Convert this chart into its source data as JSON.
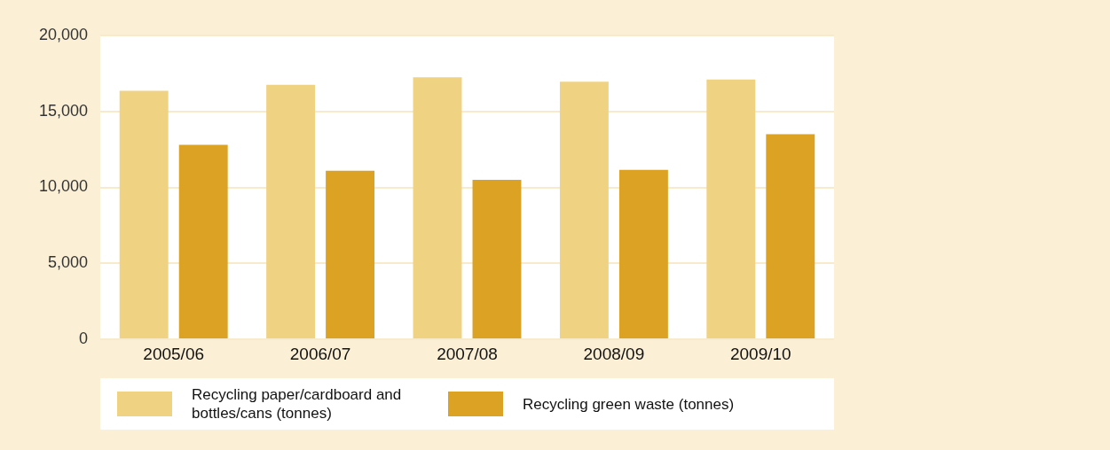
{
  "chart_data": {
    "type": "bar",
    "categories": [
      "2005/06",
      "2006/07",
      "2007/08",
      "2008/09",
      "2009/10"
    ],
    "series": [
      {
        "name": "Recycling paper/cardboard and bottles/cans (tonnes)",
        "color": "#f0d283",
        "values": [
          16350,
          16750,
          17250,
          16950,
          17100
        ]
      },
      {
        "name": "Recycling green waste (tonnes)",
        "color": "#dba223",
        "values": [
          12800,
          11100,
          10500,
          11150,
          13500
        ]
      }
    ],
    "ylim": [
      0,
      20000
    ],
    "yticks": [
      {
        "value": 0,
        "label": "0"
      },
      {
        "value": 5000,
        "label": "5,000"
      },
      {
        "value": 10000,
        "label": "10,000"
      },
      {
        "value": 15000,
        "label": "15,000"
      },
      {
        "value": 20000,
        "label": "20,000"
      }
    ],
    "grid": "y",
    "legend": "bottom"
  }
}
